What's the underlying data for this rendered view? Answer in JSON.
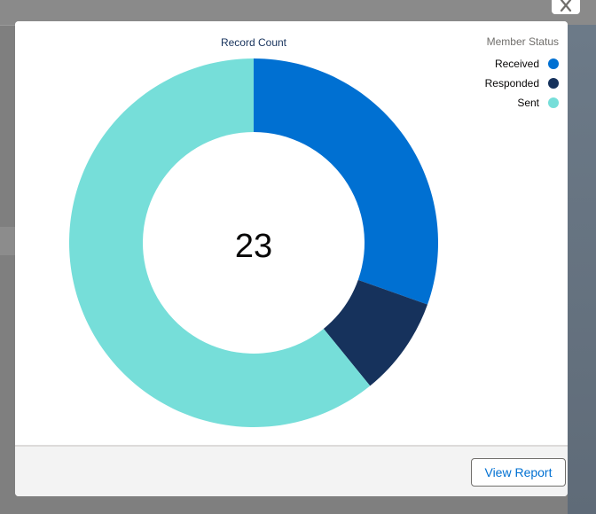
{
  "modal": {
    "close_icon": "close-icon",
    "footer": {
      "view_report_label": "View Report"
    }
  },
  "chart_data": {
    "type": "pie",
    "style": "donut",
    "title": "Record Count",
    "total_label": "23",
    "legend_title": "Member Status",
    "legend_position": "top-right",
    "slices": [
      {
        "label": "Received",
        "value": 7,
        "color": "#0070d2"
      },
      {
        "label": "Responded",
        "value": 2,
        "color": "#16325c"
      },
      {
        "label": "Sent",
        "value": 14,
        "color": "#76ded9"
      }
    ]
  }
}
